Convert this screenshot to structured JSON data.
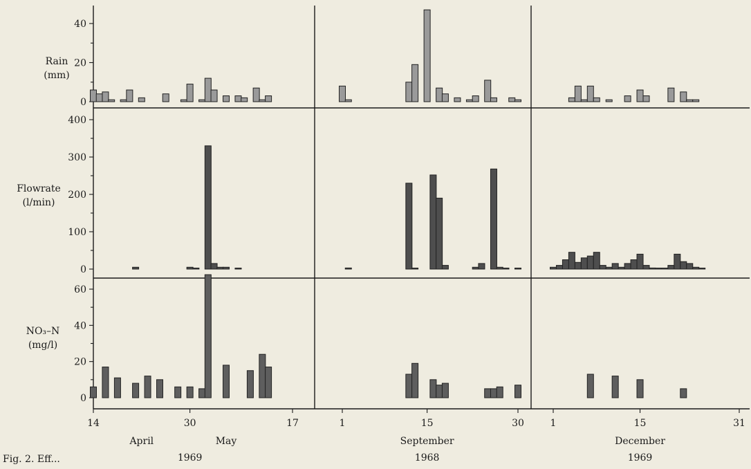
{
  "chart_data": {
    "type": "bar",
    "panels": [
      {
        "name": "rain",
        "ylabel_lines": [
          "Rain",
          "(mm)"
        ],
        "yticks": [
          0,
          20,
          40
        ],
        "ylim": [
          0,
          50
        ]
      },
      {
        "name": "flow",
        "ylabel_lines": [
          "Flowrate",
          "(l/min)"
        ],
        "yticks": [
          0,
          100,
          200,
          300,
          400
        ],
        "ylim": [
          0,
          410
        ]
      },
      {
        "name": "nitrate",
        "ylabel_lines": [
          "NO₃–N",
          "(mg/l)"
        ],
        "yticks": [
          0,
          20,
          40,
          60
        ],
        "ylim": [
          0,
          68
        ]
      }
    ],
    "periods": [
      {
        "name": "April–May 1969",
        "date_range": [
          "1969-04-14",
          "1969-05-17"
        ],
        "x_ticks": [
          {
            "date": "1969-04-14",
            "label": "14"
          },
          {
            "date": "1969-04-30",
            "label": "30"
          },
          {
            "date": "1969-05-17",
            "label": "17"
          }
        ],
        "month_labels": [
          {
            "date": "1969-04-22",
            "label": "April"
          },
          {
            "date": "1969-05-06",
            "label": "May"
          }
        ],
        "year_label": {
          "date": "1969-04-30",
          "label": "1969"
        },
        "rain": [
          [
            "1969-04-14",
            6
          ],
          [
            "1969-04-15",
            4
          ],
          [
            "1969-04-16",
            5
          ],
          [
            "1969-04-17",
            1
          ],
          [
            "1969-04-19",
            1
          ],
          [
            "1969-04-20",
            6
          ],
          [
            "1969-04-22",
            2
          ],
          [
            "1969-04-26",
            4
          ],
          [
            "1969-04-29",
            1
          ],
          [
            "1969-04-30",
            9
          ],
          [
            "1969-05-02",
            1
          ],
          [
            "1969-05-03",
            12
          ],
          [
            "1969-05-04",
            6
          ],
          [
            "1969-05-06",
            3
          ],
          [
            "1969-05-08",
            3
          ],
          [
            "1969-05-09",
            2
          ],
          [
            "1969-05-11",
            7
          ],
          [
            "1969-05-12",
            1
          ],
          [
            "1969-05-13",
            3
          ]
        ],
        "flow": [
          [
            "1969-04-21",
            5
          ],
          [
            "1969-04-30",
            5
          ],
          [
            "1969-05-01",
            2
          ],
          [
            "1969-05-03",
            330
          ],
          [
            "1969-05-04",
            15
          ],
          [
            "1969-05-05",
            5
          ],
          [
            "1969-05-06",
            5
          ],
          [
            "1969-05-08",
            1
          ]
        ],
        "nitrate": [
          [
            "1969-04-14",
            6
          ],
          [
            "1969-04-16",
            17
          ],
          [
            "1969-04-18",
            11
          ],
          [
            "1969-04-21",
            8
          ],
          [
            "1969-04-23",
            12
          ],
          [
            "1969-04-25",
            10
          ],
          [
            "1969-04-28",
            6
          ],
          [
            "1969-04-30",
            6
          ],
          [
            "1969-05-02",
            5
          ],
          [
            "1969-05-03",
            68
          ],
          [
            "1969-05-06",
            18
          ],
          [
            "1969-05-10",
            15
          ],
          [
            "1969-05-12",
            24
          ],
          [
            "1969-05-13",
            17
          ]
        ]
      },
      {
        "name": "September 1968",
        "date_range": [
          "1968-09-01",
          "1968-09-30"
        ],
        "x_ticks": [
          {
            "date": "1968-09-01",
            "label": "1"
          },
          {
            "date": "1968-09-15",
            "label": "15"
          },
          {
            "date": "1968-09-30",
            "label": "30"
          }
        ],
        "month_labels": [
          {
            "date": "1968-09-15",
            "label": "September"
          }
        ],
        "year_label": {
          "date": "1968-09-15",
          "label": "1968"
        },
        "rain": [
          [
            "1968-09-01",
            8
          ],
          [
            "1968-09-02",
            1
          ],
          [
            "1968-09-12",
            10
          ],
          [
            "1968-09-13",
            19
          ],
          [
            "1968-09-15",
            47
          ],
          [
            "1968-09-17",
            7
          ],
          [
            "1968-09-18",
            4
          ],
          [
            "1968-09-20",
            2
          ],
          [
            "1968-09-22",
            1
          ],
          [
            "1968-09-23",
            3
          ],
          [
            "1968-09-25",
            11
          ],
          [
            "1968-09-26",
            2
          ],
          [
            "1968-09-29",
            2
          ],
          [
            "1968-09-30",
            1
          ]
        ],
        "flow": [
          [
            "1968-09-02",
            3
          ],
          [
            "1968-09-12",
            230
          ],
          [
            "1968-09-13",
            2
          ],
          [
            "1968-09-16",
            252
          ],
          [
            "1968-09-17",
            190
          ],
          [
            "1968-09-18",
            10
          ],
          [
            "1968-09-23",
            5
          ],
          [
            "1968-09-24",
            15
          ],
          [
            "1968-09-26",
            268
          ],
          [
            "1968-09-27",
            5
          ],
          [
            "1968-09-28",
            1
          ],
          [
            "1968-09-30",
            1
          ]
        ],
        "nitrate": [
          [
            "1968-09-12",
            13
          ],
          [
            "1968-09-13",
            19
          ],
          [
            "1968-09-16",
            10
          ],
          [
            "1968-09-17",
            7
          ],
          [
            "1968-09-18",
            8
          ],
          [
            "1968-09-25",
            5
          ],
          [
            "1968-09-26",
            5
          ],
          [
            "1968-09-27",
            6
          ],
          [
            "1968-09-30",
            7
          ]
        ]
      },
      {
        "name": "December 1969",
        "date_range": [
          "1969-12-01",
          "1969-12-31"
        ],
        "x_ticks": [
          {
            "date": "1969-12-01",
            "label": "1"
          },
          {
            "date": "1969-12-15",
            "label": "15"
          },
          {
            "date": "1969-12-31",
            "label": "31"
          }
        ],
        "month_labels": [
          {
            "date": "1969-12-15",
            "label": "December"
          }
        ],
        "year_label": {
          "date": "1969-12-15",
          "label": "1969"
        },
        "rain": [
          [
            "1969-12-04",
            2
          ],
          [
            "1969-12-05",
            8
          ],
          [
            "1969-12-06",
            1
          ],
          [
            "1969-12-07",
            8
          ],
          [
            "1969-12-08",
            2
          ],
          [
            "1969-12-10",
            1
          ],
          [
            "1969-12-13",
            3
          ],
          [
            "1969-12-15",
            6
          ],
          [
            "1969-12-16",
            3
          ],
          [
            "1969-12-20",
            7
          ],
          [
            "1969-12-22",
            5
          ],
          [
            "1969-12-23",
            1
          ],
          [
            "1969-12-24",
            1
          ]
        ],
        "flow": [
          [
            "1969-12-01",
            5
          ],
          [
            "1969-12-02",
            10
          ],
          [
            "1969-12-03",
            25
          ],
          [
            "1969-12-04",
            45
          ],
          [
            "1969-12-05",
            18
          ],
          [
            "1969-12-06",
            30
          ],
          [
            "1969-12-07",
            35
          ],
          [
            "1969-12-08",
            45
          ],
          [
            "1969-12-09",
            10
          ],
          [
            "1969-12-10",
            5
          ],
          [
            "1969-12-11",
            15
          ],
          [
            "1969-12-12",
            5
          ],
          [
            "1969-12-13",
            15
          ],
          [
            "1969-12-14",
            25
          ],
          [
            "1969-12-15",
            40
          ],
          [
            "1969-12-16",
            10
          ],
          [
            "1969-12-17",
            3
          ],
          [
            "1969-12-18",
            2
          ],
          [
            "1969-12-19",
            1
          ],
          [
            "1969-12-20",
            10
          ],
          [
            "1969-12-21",
            40
          ],
          [
            "1969-12-22",
            20
          ],
          [
            "1969-12-23",
            15
          ],
          [
            "1969-12-24",
            5
          ],
          [
            "1969-12-25",
            2
          ]
        ],
        "nitrate": [
          [
            "1969-12-07",
            13
          ],
          [
            "1969-12-11",
            12
          ],
          [
            "1969-12-15",
            10
          ],
          [
            "1969-12-22",
            5
          ]
        ]
      }
    ],
    "caption_visible": "Fig. 2. Eff..."
  }
}
